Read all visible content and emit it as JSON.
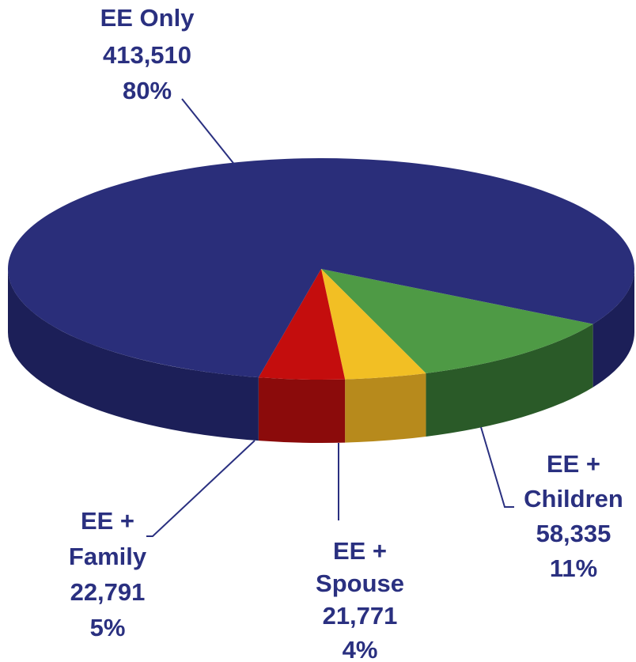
{
  "chart_data": {
    "type": "pie",
    "title": "",
    "slices": [
      {
        "label_lines": [
          "EE Only"
        ],
        "value": 413510,
        "value_text": "413,510",
        "percent_text": "80%",
        "color": "#2a2e7a",
        "side_color": "#1c1f58"
      },
      {
        "label_lines": [
          "EE +",
          "Children"
        ],
        "value": 58335,
        "value_text": "58,335",
        "percent_text": "11%",
        "color": "#4e9a45",
        "side_color": "#2a5a28"
      },
      {
        "label_lines": [
          "EE +",
          "Spouse"
        ],
        "value": 21771,
        "value_text": "21,771",
        "percent_text": "4%",
        "color": "#f2bf24",
        "side_color": "#b78a1c"
      },
      {
        "label_lines": [
          "EE +",
          "Family"
        ],
        "value": 22791,
        "value_text": "22,791",
        "percent_text": "5%",
        "color": "#c40d0d",
        "side_color": "#8b0b0b"
      }
    ]
  }
}
